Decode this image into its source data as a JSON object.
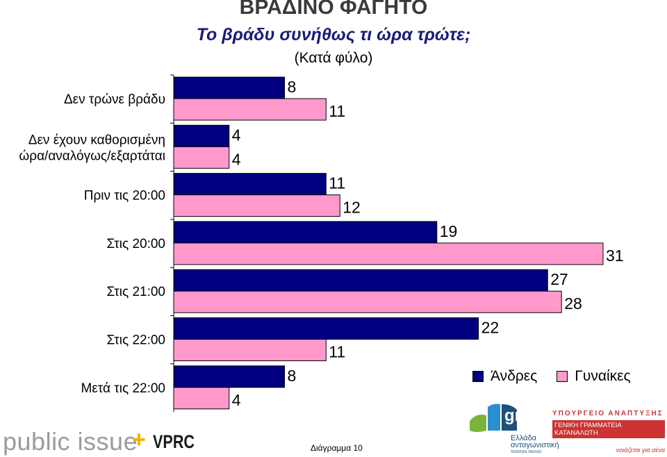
{
  "chart_data": {
    "type": "bar",
    "orientation": "horizontal",
    "title": "ΒΡΑΔΙΝΟ ΦΑΓΗΤΟ",
    "subtitle": "Το βράδυ συνήθως τι ώρα τρώτε;",
    "note": "(Κατά φύλο)",
    "categories": [
      [
        "Δεν τρώνε βράδυ"
      ],
      [
        "Δεν έχουν καθορισμένη",
        "ώρα/αναλόγως/εξαρτάται"
      ],
      [
        "Πριν τις 20:00"
      ],
      [
        "Στις 20:00"
      ],
      [
        "Στις 21:00"
      ],
      [
        "Στις 22:00"
      ],
      [
        "Μετά τις 22:00"
      ]
    ],
    "series": [
      {
        "name": "Άνδρες",
        "color": "#000080",
        "values": [
          8,
          4,
          11,
          19,
          27,
          22,
          8
        ]
      },
      {
        "name": "Γυναίκες",
        "color": "#ff99cc",
        "values": [
          11,
          4,
          12,
          31,
          28,
          11,
          4
        ]
      }
    ],
    "xlim": [
      0,
      32
    ],
    "grid": false,
    "legend": "bottom-right"
  },
  "footer": {
    "brand": "public issue",
    "plus": "+",
    "partner": "VPRC",
    "diagram_number": "Διάγραμμα 10",
    "gr_logo_text": "gr",
    "gr_line1": "Ελλάδα",
    "gr_line2": "ανταγωνιστική",
    "gr_line3": "ποιότητα παντού",
    "ministry_line1": "ΥΠΟΥΡΓΕΙΟ ΑΝΑΠΤΥΞΗΣ",
    "ministry_line2": "ΓΕΝΙΚΗ ΓΡΑΜΜΑΤΕΙΑ ΚΑΤΑΝΑΛΩΤΗ",
    "ministry_line3": "νοιάζεται για σένα"
  }
}
